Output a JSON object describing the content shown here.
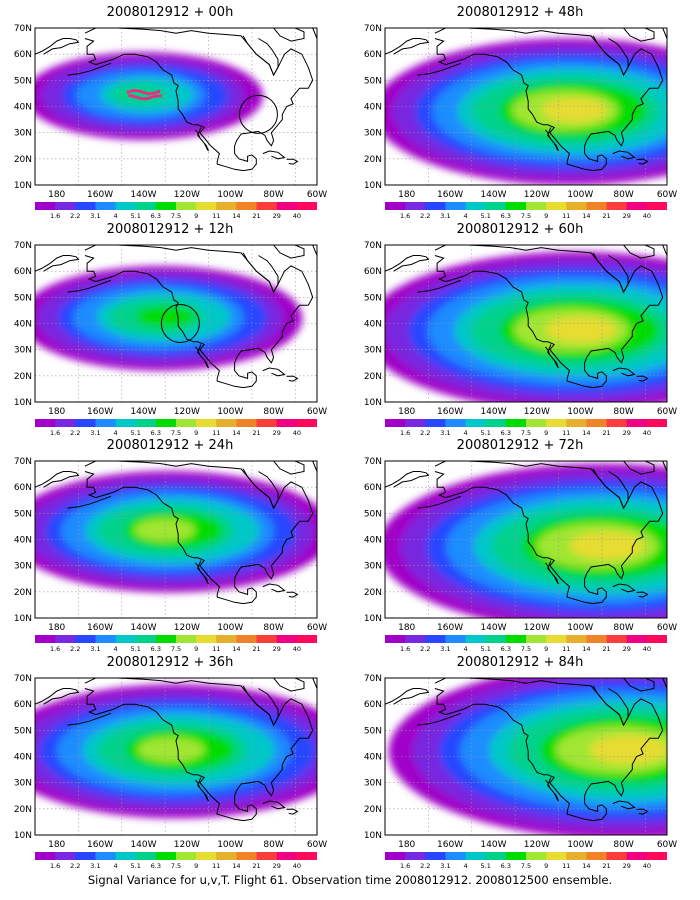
{
  "caption": "Signal Variance for u,v,T. Flight 61. Observation time 2008012912. 2008012500 ensemble.",
  "map": {
    "lon_range": [
      170,
      300
    ],
    "lat_range": [
      10,
      70
    ],
    "lat_labels": [
      "70N",
      "60N",
      "50N",
      "40N",
      "30N",
      "20N",
      "10N"
    ],
    "lon_labels": [
      "180",
      "160W",
      "140W",
      "120W",
      "100W",
      "80W",
      "60W"
    ]
  },
  "colorbar": {
    "labels": [
      "1.6",
      "2.2",
      "3.1",
      "4",
      "5.1",
      "6.3",
      "7.5",
      "9",
      "11",
      "14",
      "21",
      "29",
      "40"
    ],
    "colors": [
      "#a000c8",
      "#7828e0",
      "#2846ff",
      "#1e8cff",
      "#00c8c8",
      "#00d28c",
      "#00dc00",
      "#a0e632",
      "#e6dc32",
      "#e6af2d",
      "#f08228",
      "#fa3c3c",
      "#f00082"
    ]
  },
  "panels": [
    {
      "title": "2008012912 + 00h",
      "center": [
        220,
        44
      ],
      "extent": 0.45,
      "level": 6,
      "observations": true,
      "circle": [
        273,
        37
      ]
    },
    {
      "title": "2008012912 + 12h",
      "center": [
        228,
        42
      ],
      "extent": 0.65,
      "level": 7,
      "circle": [
        237,
        40
      ]
    },
    {
      "title": "2008012912 + 24h",
      "center": [
        232,
        43
      ],
      "extent": 0.85,
      "level": 8
    },
    {
      "title": "2008012912 + 36h",
      "center": [
        235,
        42
      ],
      "extent": 1.0,
      "level": 8
    },
    {
      "title": "2008012912 + 48h",
      "center": [
        255,
        38
      ],
      "extent": 1.15,
      "level": 9
    },
    {
      "title": "2008012912 + 60h",
      "center": [
        258,
        37
      ],
      "extent": 1.3,
      "level": 9
    },
    {
      "title": "2008012912 + 72h",
      "center": [
        270,
        37
      ],
      "extent": 1.4,
      "level": 9
    },
    {
      "title": "2008012912 + 84h",
      "center": [
        280,
        42
      ],
      "extent": 1.5,
      "level": 9
    }
  ]
}
